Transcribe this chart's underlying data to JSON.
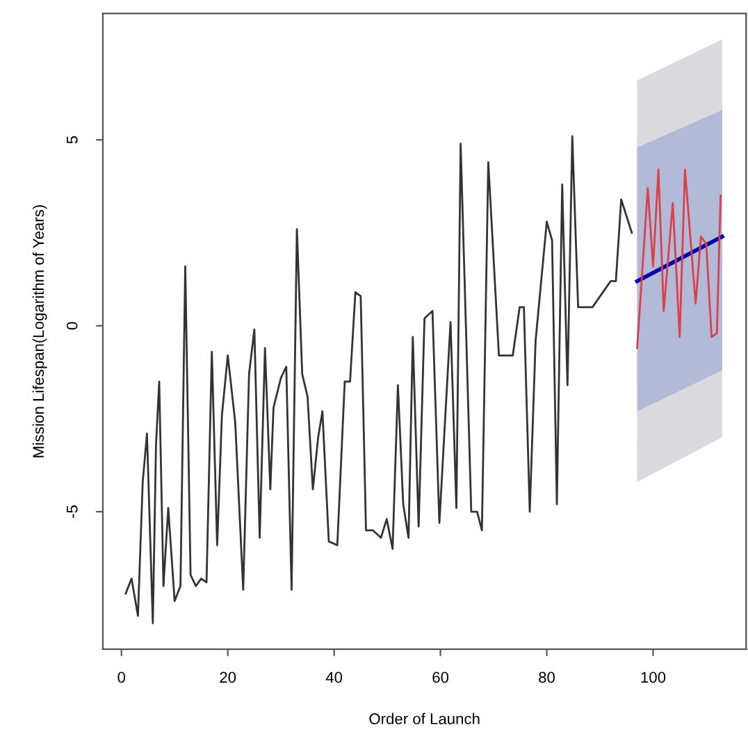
{
  "chart_data": {
    "type": "line",
    "xlabel": "Order of Launch",
    "ylabel": "Mission Lifespan(Logarithm of Years)",
    "xlim": [
      -3.5,
      117.5
    ],
    "ylim": [
      -8.7,
      8.4
    ],
    "xticks": [
      0,
      20,
      40,
      60,
      80,
      100
    ],
    "yticks": [
      -5,
      0,
      5
    ],
    "series": [
      {
        "color": "#d9d9de",
        "x": [
          97,
          113
        ],
        "values": [
          null,
          null
        ],
        "lower": [
          -4.2,
          -3.0
        ],
        "upper": [
          6.6,
          7.7
        ]
      },
      {
        "color": "#b3bad7",
        "x": [
          97,
          113
        ],
        "values": [
          null,
          null
        ],
        "lower": [
          -2.3,
          -1.2
        ],
        "upper": [
          4.8,
          5.8
        ]
      },
      {
        "color": "#0000aa",
        "x": [
          97,
          113
        ],
        "values": [
          1.2,
          2.4
        ]
      },
      {
        "color": "#d9404a",
        "x": [
          97,
          99,
          100,
          101,
          102,
          103.7,
          105,
          106,
          108,
          109,
          110,
          111,
          112,
          112.7
        ],
        "values": [
          -0.6,
          3.7,
          1.6,
          4.2,
          0.4,
          3.3,
          -0.3,
          4.2,
          0.6,
          2.4,
          2.2,
          -0.3,
          -0.2,
          3.5
        ]
      },
      {
        "color": "#333333",
        "x": [
          0.8,
          1.9,
          3.1,
          4,
          4.8,
          5.9,
          6.5,
          7.1,
          7.9,
          8.8,
          10,
          11.1,
          12,
          13,
          14,
          15,
          16,
          17,
          18,
          18.9,
          20,
          21.4,
          22.9,
          24,
          25,
          26,
          27,
          28,
          28.6,
          30,
          31,
          32,
          33,
          34,
          35,
          36,
          37,
          37.8,
          39,
          40.6,
          42,
          43,
          44,
          45,
          46,
          47.3,
          48.8,
          49.9,
          51,
          52,
          53,
          54,
          54.8,
          55.9,
          57,
          58.5,
          59.8,
          61.9,
          63,
          63.8,
          65.8,
          66.9,
          67.8,
          69,
          71,
          73.6,
          74.9,
          75.7,
          76.8,
          77.9,
          80,
          81,
          81.9,
          82.9,
          83.9,
          84.8,
          85.9,
          88.6,
          92,
          93,
          94,
          96
        ],
        "values": [
          -7.2,
          -6.8,
          -7.8,
          -4.2,
          -2.9,
          -8.0,
          -3.2,
          -1.5,
          -7.0,
          -4.9,
          -7.4,
          -7.0,
          1.6,
          -6.7,
          -7.0,
          -6.8,
          -6.9,
          -0.7,
          -5.9,
          -2.4,
          -0.8,
          -2.6,
          -7.1,
          -1.3,
          -0.1,
          -5.7,
          -0.6,
          -4.4,
          -2.2,
          -1.4,
          -1.1,
          -7.1,
          2.6,
          -1.3,
          -1.9,
          -4.4,
          -3.0,
          -2.3,
          -5.8,
          -5.9,
          -1.5,
          -1.5,
          0.9,
          0.8,
          -5.5,
          -5.5,
          -5.7,
          -5.2,
          -6.0,
          -1.6,
          -4.8,
          -5.7,
          -0.3,
          -5.4,
          0.2,
          0.4,
          -5.3,
          0.1,
          -4.9,
          4.9,
          -5.0,
          -5.0,
          -5.5,
          4.4,
          -0.8,
          -0.8,
          0.5,
          0.5,
          -5.0,
          -0.4,
          2.8,
          2.3,
          -4.8,
          3.8,
          -1.6,
          5.1,
          0.5,
          0.5,
          1.2,
          1.2,
          3.4,
          2.5
        ]
      }
    ]
  }
}
